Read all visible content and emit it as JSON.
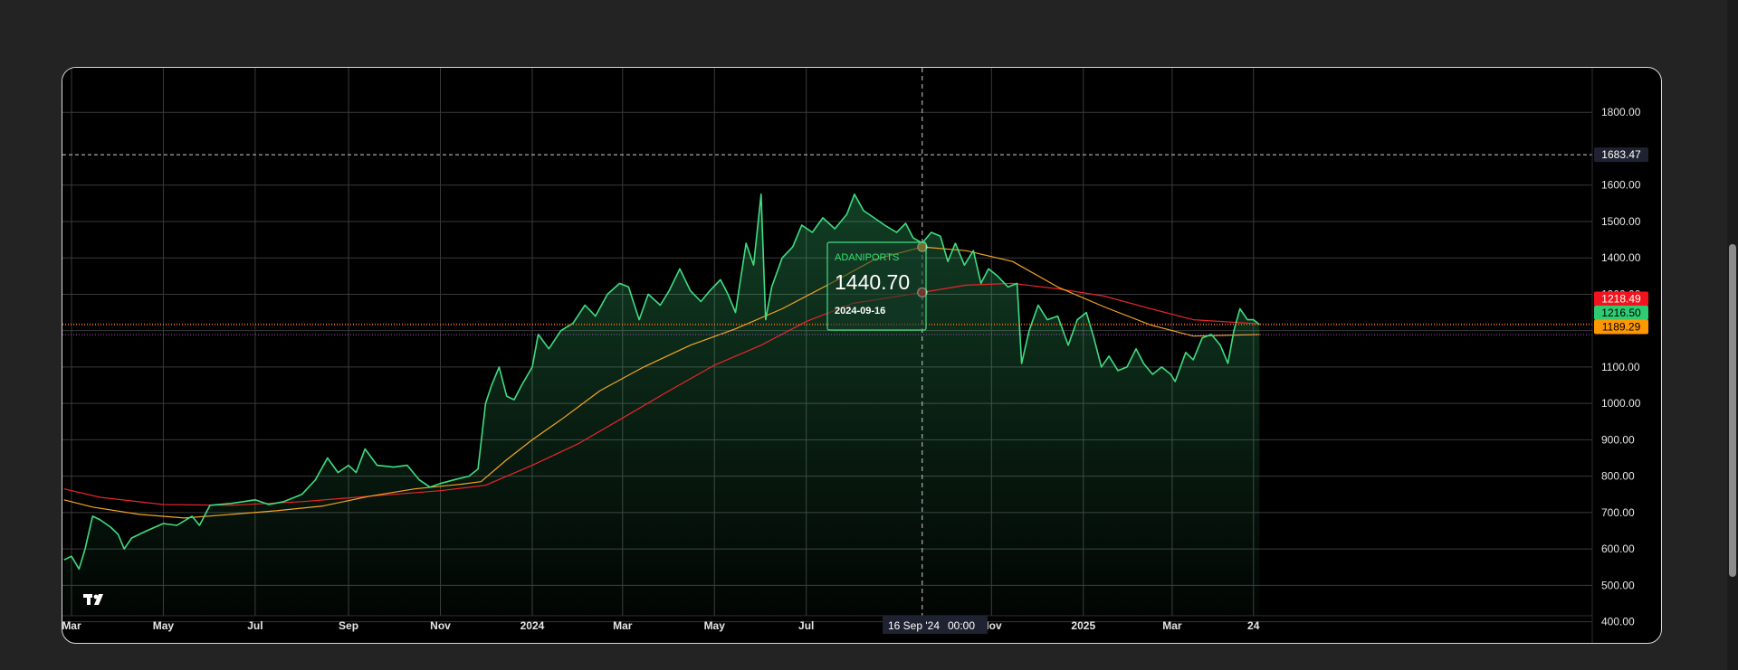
{
  "chart_data": {
    "type": "line",
    "symbol": "ADANIPORTS",
    "y_ticks": [
      400,
      500,
      600,
      700,
      800,
      900,
      1000,
      1100,
      1200,
      1300,
      1400,
      1500,
      1600,
      1800
    ],
    "y_tick_labels": [
      "400.00",
      "500.00",
      "600.00",
      "700.00",
      "800.00",
      "900.00",
      "1000.00",
      "1100.00",
      "1200.00",
      "1300.00",
      "1400.00",
      "1500.00",
      "1600.00",
      "1800.00"
    ],
    "ylim": [
      400,
      1860
    ],
    "x_ticks": [
      {
        "label": "Mar",
        "date": "2023-03-01"
      },
      {
        "label": "May",
        "date": "2023-05-01"
      },
      {
        "label": "Jul",
        "date": "2023-07-01"
      },
      {
        "label": "Sep",
        "date": "2023-09-01"
      },
      {
        "label": "Nov",
        "date": "2023-11-01"
      },
      {
        "label": "2024",
        "date": "2024-01-01"
      },
      {
        "label": "Mar",
        "date": "2024-03-01"
      },
      {
        "label": "May",
        "date": "2024-05-01"
      },
      {
        "label": "Jul",
        "date": "2024-07-01"
      },
      {
        "label": "Nov",
        "date": "2024-11-01"
      },
      {
        "label": "2025",
        "date": "2025-01-01"
      },
      {
        "label": "Mar",
        "date": "2025-03-01"
      },
      {
        "label": "24",
        "date": "2025-04-24"
      }
    ],
    "xlim": [
      "2023-02-23",
      "2025-12-05"
    ],
    "grid": true,
    "series": [
      {
        "color": "#3fdd82",
        "points": [
          [
            "2023-02-24",
            570
          ],
          [
            "2023-03-01",
            580
          ],
          [
            "2023-03-06",
            545
          ],
          [
            "2023-03-10",
            600
          ],
          [
            "2023-03-15",
            690
          ],
          [
            "2023-03-20",
            680
          ],
          [
            "2023-03-27",
            660
          ],
          [
            "2023-04-01",
            640
          ],
          [
            "2023-04-05",
            600
          ],
          [
            "2023-04-10",
            630
          ],
          [
            "2023-04-20",
            650
          ],
          [
            "2023-05-01",
            670
          ],
          [
            "2023-05-10",
            665
          ],
          [
            "2023-05-20",
            690
          ],
          [
            "2023-05-25",
            665
          ],
          [
            "2023-06-01",
            720
          ],
          [
            "2023-06-15",
            725
          ],
          [
            "2023-07-01",
            735
          ],
          [
            "2023-07-10",
            722
          ],
          [
            "2023-07-20",
            730
          ],
          [
            "2023-08-01",
            750
          ],
          [
            "2023-08-10",
            790
          ],
          [
            "2023-08-18",
            850
          ],
          [
            "2023-08-25",
            810
          ],
          [
            "2023-09-01",
            830
          ],
          [
            "2023-09-06",
            810
          ],
          [
            "2023-09-12",
            875
          ],
          [
            "2023-09-20",
            830
          ],
          [
            "2023-10-01",
            825
          ],
          [
            "2023-10-10",
            830
          ],
          [
            "2023-10-18",
            790
          ],
          [
            "2023-10-25",
            770
          ],
          [
            "2023-11-01",
            780
          ],
          [
            "2023-11-10",
            790
          ],
          [
            "2023-11-20",
            800
          ],
          [
            "2023-11-26",
            820
          ],
          [
            "2023-12-01",
            1000
          ],
          [
            "2023-12-05",
            1050
          ],
          [
            "2023-12-10",
            1100
          ],
          [
            "2023-12-15",
            1020
          ],
          [
            "2023-12-20",
            1010
          ],
          [
            "2023-12-25",
            1050
          ],
          [
            "2024-01-01",
            1100
          ],
          [
            "2024-01-05",
            1190
          ],
          [
            "2024-01-12",
            1150
          ],
          [
            "2024-01-20",
            1200
          ],
          [
            "2024-01-28",
            1220
          ],
          [
            "2024-02-05",
            1270
          ],
          [
            "2024-02-12",
            1240
          ],
          [
            "2024-02-20",
            1300
          ],
          [
            "2024-02-28",
            1330
          ],
          [
            "2024-03-05",
            1320
          ],
          [
            "2024-03-12",
            1230
          ],
          [
            "2024-03-18",
            1300
          ],
          [
            "2024-03-26",
            1270
          ],
          [
            "2024-04-01",
            1310
          ],
          [
            "2024-04-08",
            1370
          ],
          [
            "2024-04-15",
            1310
          ],
          [
            "2024-04-22",
            1280
          ],
          [
            "2024-04-28",
            1310
          ],
          [
            "2024-05-05",
            1340
          ],
          [
            "2024-05-10",
            1300
          ],
          [
            "2024-05-15",
            1250
          ],
          [
            "2024-05-22",
            1440
          ],
          [
            "2024-05-27",
            1380
          ],
          [
            "2024-06-01",
            1575
          ],
          [
            "2024-06-04",
            1230
          ],
          [
            "2024-06-08",
            1320
          ],
          [
            "2024-06-15",
            1400
          ],
          [
            "2024-06-22",
            1430
          ],
          [
            "2024-06-28",
            1490
          ],
          [
            "2024-07-05",
            1470
          ],
          [
            "2024-07-12",
            1510
          ],
          [
            "2024-07-20",
            1480
          ],
          [
            "2024-07-28",
            1520
          ],
          [
            "2024-08-02",
            1575
          ],
          [
            "2024-08-08",
            1530
          ],
          [
            "2024-08-15",
            1510
          ],
          [
            "2024-08-22",
            1490
          ],
          [
            "2024-08-30",
            1470
          ],
          [
            "2024-09-05",
            1495
          ],
          [
            "2024-09-10",
            1455
          ],
          [
            "2024-09-16",
            1440.7
          ],
          [
            "2024-09-22",
            1470
          ],
          [
            "2024-09-28",
            1460
          ],
          [
            "2024-10-03",
            1390
          ],
          [
            "2024-10-08",
            1440
          ],
          [
            "2024-10-14",
            1380
          ],
          [
            "2024-10-20",
            1420
          ],
          [
            "2024-10-25",
            1330
          ],
          [
            "2024-10-30",
            1370
          ],
          [
            "2024-11-05",
            1350
          ],
          [
            "2024-11-12",
            1320
          ],
          [
            "2024-11-18",
            1330
          ],
          [
            "2024-11-21",
            1110
          ],
          [
            "2024-11-26",
            1200
          ],
          [
            "2024-12-02",
            1270
          ],
          [
            "2024-12-08",
            1230
          ],
          [
            "2024-12-15",
            1240
          ],
          [
            "2024-12-22",
            1160
          ],
          [
            "2024-12-28",
            1230
          ],
          [
            "2025-01-03",
            1250
          ],
          [
            "2025-01-08",
            1180
          ],
          [
            "2025-01-13",
            1100
          ],
          [
            "2025-01-18",
            1130
          ],
          [
            "2025-01-24",
            1090
          ],
          [
            "2025-01-30",
            1100
          ],
          [
            "2025-02-05",
            1150
          ],
          [
            "2025-02-10",
            1110
          ],
          [
            "2025-02-16",
            1080
          ],
          [
            "2025-02-22",
            1100
          ],
          [
            "2025-02-28",
            1080
          ],
          [
            "2025-03-03",
            1060
          ],
          [
            "2025-03-10",
            1140
          ],
          [
            "2025-03-15",
            1120
          ],
          [
            "2025-03-21",
            1180
          ],
          [
            "2025-03-27",
            1190
          ],
          [
            "2025-04-02",
            1160
          ],
          [
            "2025-04-07",
            1110
          ],
          [
            "2025-04-11",
            1200
          ],
          [
            "2025-04-15",
            1260
          ],
          [
            "2025-04-20",
            1230
          ],
          [
            "2025-04-24",
            1230
          ],
          [
            "2025-04-28",
            1216.5
          ]
        ]
      },
      {
        "color": "#f5a623",
        "points": [
          [
            "2023-02-24",
            735
          ],
          [
            "2023-03-15",
            715
          ],
          [
            "2023-04-15",
            695
          ],
          [
            "2023-05-15",
            685
          ],
          [
            "2023-06-15",
            695
          ],
          [
            "2023-07-15",
            705
          ],
          [
            "2023-08-15",
            718
          ],
          [
            "2023-09-15",
            745
          ],
          [
            "2023-10-15",
            765
          ],
          [
            "2023-11-15",
            778
          ],
          [
            "2023-11-28",
            785
          ],
          [
            "2023-12-15",
            845
          ],
          [
            "2024-01-01",
            900
          ],
          [
            "2024-01-20",
            955
          ],
          [
            "2024-02-15",
            1035
          ],
          [
            "2024-03-15",
            1100
          ],
          [
            "2024-04-15",
            1160
          ],
          [
            "2024-05-15",
            1205
          ],
          [
            "2024-06-15",
            1260
          ],
          [
            "2024-07-15",
            1325
          ],
          [
            "2024-08-15",
            1395
          ],
          [
            "2024-09-16",
            1430
          ],
          [
            "2024-10-15",
            1420
          ],
          [
            "2024-11-15",
            1390
          ],
          [
            "2024-12-15",
            1320
          ],
          [
            "2025-01-15",
            1265
          ],
          [
            "2025-02-15",
            1215
          ],
          [
            "2025-03-15",
            1185
          ],
          [
            "2025-04-28",
            1189.29
          ]
        ]
      },
      {
        "color": "#e8262c",
        "points": [
          [
            "2023-02-24",
            765
          ],
          [
            "2023-03-20",
            742
          ],
          [
            "2023-05-01",
            722
          ],
          [
            "2023-06-15",
            720
          ],
          [
            "2023-08-01",
            730
          ],
          [
            "2023-09-15",
            745
          ],
          [
            "2023-11-01",
            760
          ],
          [
            "2023-12-01",
            775
          ],
          [
            "2024-01-01",
            830
          ],
          [
            "2024-02-01",
            890
          ],
          [
            "2024-03-01",
            960
          ],
          [
            "2024-04-01",
            1035
          ],
          [
            "2024-05-01",
            1105
          ],
          [
            "2024-06-01",
            1160
          ],
          [
            "2024-07-01",
            1225
          ],
          [
            "2024-08-01",
            1275
          ],
          [
            "2024-09-16",
            1305
          ],
          [
            "2024-10-15",
            1325
          ],
          [
            "2024-11-15",
            1330
          ],
          [
            "2024-12-15",
            1315
          ],
          [
            "2025-01-15",
            1295
          ],
          [
            "2025-02-15",
            1260
          ],
          [
            "2025-03-15",
            1230
          ],
          [
            "2025-04-28",
            1218.49
          ]
        ]
      }
    ],
    "price_tags": [
      {
        "label": "1683.47",
        "bg": "#1f2230",
        "fg": "#ffffff",
        "value": 1683.47
      },
      {
        "label": "1218.49",
        "bg": "#f0141e",
        "fg": "#ffffff",
        "value": 1218.49
      },
      {
        "label": "1216.50",
        "bg": "#2ecc71",
        "fg": "#000000",
        "value": 1216.5
      },
      {
        "label": "1189.29",
        "bg": "#ff9800",
        "fg": "#000000",
        "value": 1189.29
      }
    ],
    "reference_line": 1683.47,
    "crosshair": {
      "date": "2024-09-16",
      "label": "16 Sep '24",
      "time_label": "00:00",
      "orange_value": 1430,
      "red_value": 1305
    },
    "tooltip": {
      "title": "ADANIPORTS",
      "value": "1440.70",
      "date": "2024-09-16"
    },
    "watermark": "TV"
  },
  "colors": {
    "accent": "#3fdd82",
    "background": "#000000",
    "page_background": "#232323"
  }
}
